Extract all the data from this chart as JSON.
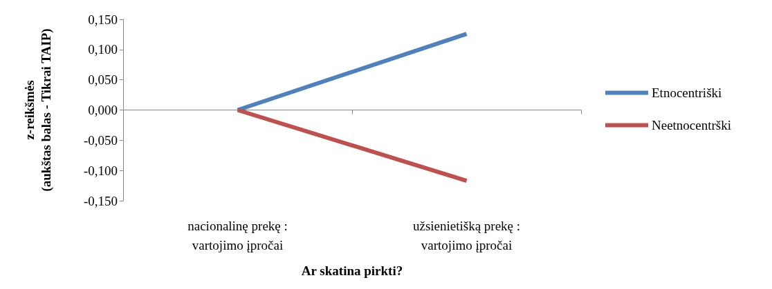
{
  "chart_data": {
    "type": "line",
    "xlabel": "Ar skatina pirkti?",
    "ylabel": "z-reikšmės\n(aukštas balas - Tikrai TAIP)",
    "categories": [
      "nacionalinę prekę :\nvartojimo įpročai",
      "užsienietišką prekę :\nvartojimo įpročai"
    ],
    "series": [
      {
        "name": "Etnocentriški",
        "color": "#4f81bd",
        "values": [
          0.0,
          0.126
        ]
      },
      {
        "name": "Neetnocentrški",
        "color": "#c0504d",
        "values": [
          0.0,
          -0.117
        ]
      }
    ],
    "ylim": [
      -0.15,
      0.15
    ],
    "yticks": [
      {
        "value": -0.15,
        "label": "-0,150"
      },
      {
        "value": -0.1,
        "label": "-0,100"
      },
      {
        "value": -0.05,
        "label": "-0,050"
      },
      {
        "value": 0,
        "label": "0,000"
      },
      {
        "value": 0.05,
        "label": "0,050"
      },
      {
        "value": 0.1,
        "label": "0,100"
      },
      {
        "value": 0.15,
        "label": "0,150"
      }
    ],
    "legend": "right",
    "marker": "none",
    "line_style": "solid"
  }
}
